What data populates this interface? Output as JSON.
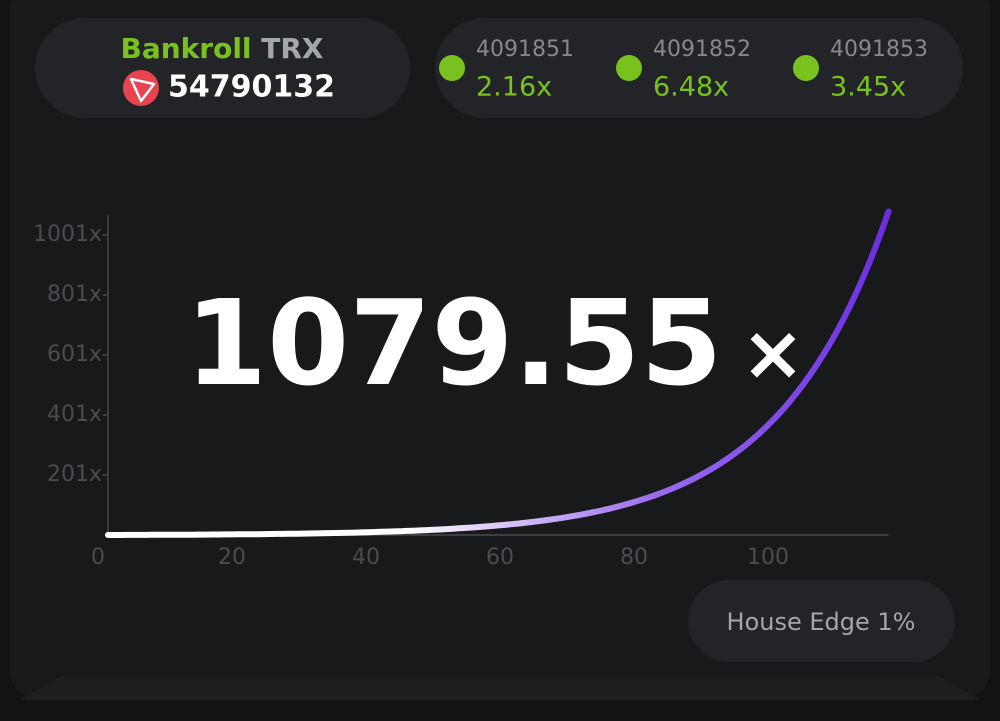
{
  "bankroll": {
    "label": "Bankroll",
    "currency": "TRX",
    "amount": "54790132"
  },
  "history": [
    {
      "round": "4091851",
      "multiplier": "2.16x"
    },
    {
      "round": "4091852",
      "multiplier": "6.48x"
    },
    {
      "round": "4091853",
      "multiplier": "3.45x"
    }
  ],
  "game": {
    "multiplier": 1079.55,
    "multiplier_sign": "×"
  },
  "chart": {
    "xlim": [
      0,
      118
    ],
    "ylim": [
      1,
      1101
    ],
    "xticks": [
      0,
      20,
      40,
      60,
      80,
      100
    ],
    "yticks": [
      {
        "value": 201,
        "label": "201x"
      },
      {
        "value": 401,
        "label": "401x"
      },
      {
        "value": 601,
        "label": "601x"
      },
      {
        "value": 801,
        "label": "801x"
      },
      {
        "value": 1001,
        "label": "1001x"
      }
    ]
  },
  "house_edge": "House Edge 1%"
}
